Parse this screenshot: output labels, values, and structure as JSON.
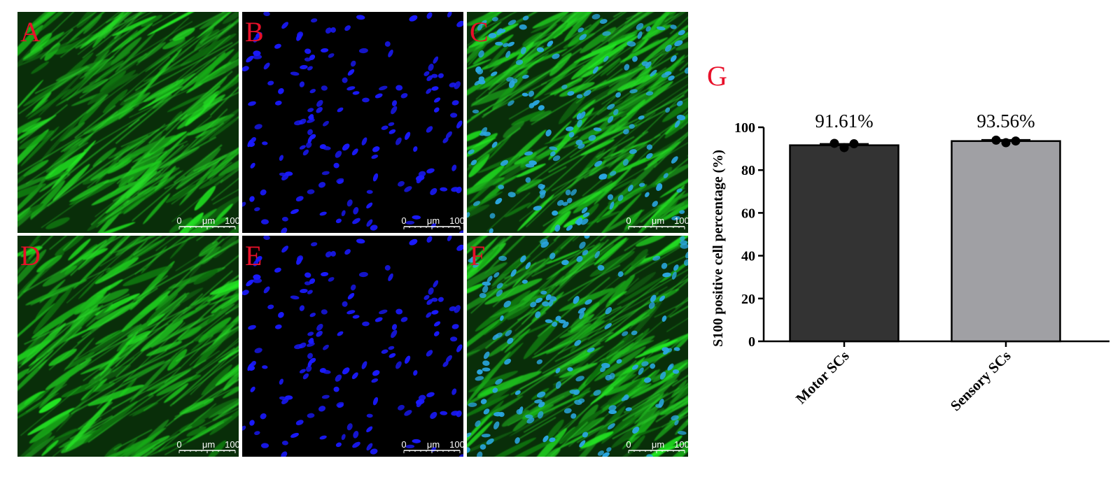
{
  "panels": [
    {
      "id": "A",
      "label": "A",
      "stain": "green"
    },
    {
      "id": "B",
      "label": "B",
      "stain": "blue"
    },
    {
      "id": "C",
      "label": "C",
      "stain": "merge"
    },
    {
      "id": "D",
      "label": "D",
      "stain": "green"
    },
    {
      "id": "E",
      "label": "E",
      "stain": "blue"
    },
    {
      "id": "F",
      "label": "F",
      "stain": "merge"
    }
  ],
  "scale_bar": {
    "start": "0",
    "unit": "μm",
    "end": "100"
  },
  "colors": {
    "panel_label": "#e8102a",
    "green_stain": "#2bd62b",
    "blue_stain": "#1a1aff",
    "merge_nuclei": "#2aa6e0",
    "bar_motor": "#333333",
    "bar_sensory": "#a0a0a4"
  },
  "chart_data": {
    "type": "bar",
    "panel_label": "G",
    "categories": [
      "Motor SCs",
      "Sensory SCs"
    ],
    "values": [
      91.61,
      93.56
    ],
    "data_labels": [
      "91.61%",
      "93.56%"
    ],
    "points": [
      [
        92.5,
        90.5,
        92.3
      ],
      [
        94.0,
        92.8,
        93.6
      ]
    ],
    "errors": [
      0.6,
      0.5
    ],
    "ylabel": "S100 positive cell percentage (%)",
    "xlabel": "",
    "ylim": [
      0,
      100
    ],
    "yticks": [
      0,
      20,
      40,
      60,
      80,
      100
    ],
    "grid": false,
    "legend": "none"
  }
}
